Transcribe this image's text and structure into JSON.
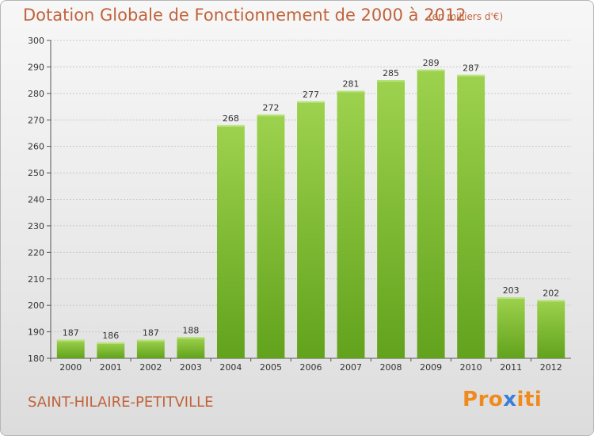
{
  "page": {
    "title": "Dotation Globale de Fonctionnement de 2000 à 2012",
    "unit_note": "(en milliers d'€)",
    "city": "SAINT-HILAIRE-PETITVILLE",
    "logo_text": "Proxiti",
    "logo_colors": [
      "#f08a1c",
      "#f08a1c",
      "#f08a1c",
      "#3b7dd8",
      "#f08a1c",
      "#f08a1c",
      "#f08a1c"
    ],
    "accent_color": "#c0633b",
    "bar_color_top": "#9dd24e",
    "bar_color_bottom": "#62a21c"
  },
  "chart_data": {
    "type": "bar",
    "title": "Dotation Globale de Fonctionnement de 2000 à 2012",
    "xlabel": "",
    "ylabel": "",
    "categories": [
      "2000",
      "2001",
      "2002",
      "2003",
      "2004",
      "2005",
      "2006",
      "2007",
      "2008",
      "2009",
      "2010",
      "2011",
      "2012"
    ],
    "values": [
      187,
      186,
      187,
      188,
      268,
      272,
      277,
      281,
      285,
      289,
      287,
      203,
      202
    ],
    "ylim": [
      180,
      300
    ],
    "yticks": [
      180,
      190,
      200,
      210,
      220,
      230,
      240,
      250,
      260,
      270,
      280,
      290,
      300
    ],
    "grid": true,
    "data_labels": true
  }
}
